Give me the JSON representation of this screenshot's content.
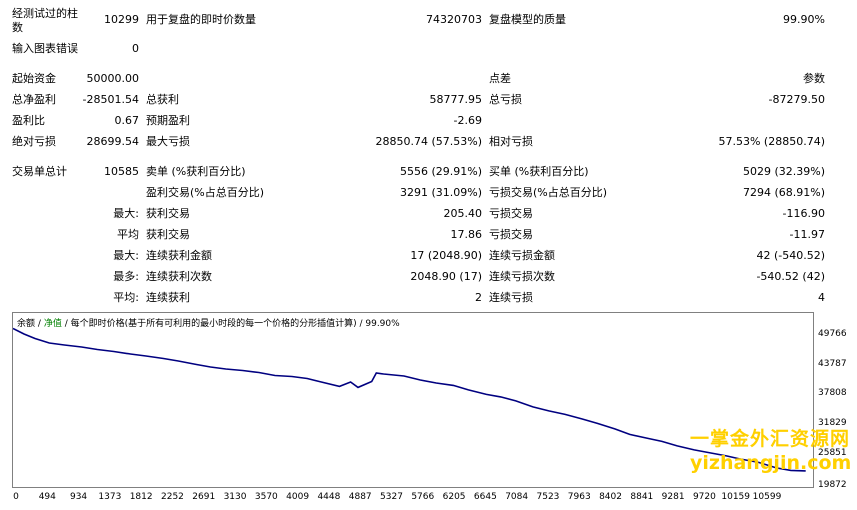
{
  "report": {
    "bars_label": "经测试过的柱数",
    "bars_value": "10299",
    "ticks_label": "用于复盘的即时价数量",
    "ticks_value": "74320703",
    "quality_label": "复盘模型的质量",
    "quality_value": "99.90%",
    "errors_label": "输入图表错误",
    "errors_value": "0",
    "deposit_label": "起始资金",
    "deposit_value": "50000.00",
    "spread_label": "点差",
    "spread_value": "参数",
    "net_profit_label": "总净盈利",
    "net_profit_value": "-28501.54",
    "gross_profit_label": "总获利",
    "gross_profit_value": "58777.95",
    "gross_loss_label": "总亏损",
    "gross_loss_value": "-87279.50",
    "profit_factor_label": "盈利比",
    "profit_factor_value": "0.67",
    "expected_payoff_label": "预期盈利",
    "expected_payoff_value": "-2.69",
    "abs_dd_label": "绝对亏损",
    "abs_dd_value": "28699.54",
    "max_dd_label": "最大亏损",
    "max_dd_value": "28850.74 (57.53%)",
    "rel_dd_label": "相对亏损",
    "rel_dd_value": "57.53% (28850.74)",
    "total_trades_label": "交易单总计",
    "total_trades_value": "10585",
    "short_label": "卖单 (%获利百分比)",
    "short_value": "5556 (29.91%)",
    "long_label": "买单 (%获利百分比)",
    "long_value": "5029 (32.39%)",
    "profit_trades_label": "盈利交易(%占总百分比)",
    "profit_trades_value": "3291 (31.09%)",
    "loss_trades_label": "亏损交易(%占总百分比)",
    "loss_trades_value": "7294 (68.91%)",
    "largest_label": "最大:",
    "largest_profit_label": "获利交易",
    "largest_profit_value": "205.40",
    "largest_loss_label": "亏损交易",
    "largest_loss_value": "-116.90",
    "average_label": "平均",
    "avg_profit_label": "获利交易",
    "avg_profit_value": "17.86",
    "avg_loss_label": "亏损交易",
    "avg_loss_value": "-11.97",
    "max2_label": "最大:",
    "max_consec_wins_label": "连续获利金额",
    "max_consec_wins_value": "17 (2048.90)",
    "max_consec_losses_label": "连续亏损金额",
    "max_consec_losses_value": "42 (-540.52)",
    "most_label": "最多:",
    "max_consec_profit_label": "连续获利次数",
    "max_consec_profit_value": "2048.90 (17)",
    "max_consec_loss_label": "连续亏损次数",
    "max_consec_loss_value": "-540.52 (42)",
    "average2_label": "平均:",
    "avg_consec_wins_label": "连续获利",
    "avg_consec_wins_value": "2",
    "avg_consec_losses_label": "连续亏损",
    "avg_consec_losses_value": "4"
  },
  "chart_header": {
    "balance": "余额",
    "sep1": "/",
    "equity": "净值",
    "rest": "/ 每个即时价格(基于所有可利用的最小时段的每一个价格的分形插值计算) / 99.90%"
  },
  "watermark": {
    "line1": "一掌金外汇资源网",
    "line2": "yizhangjin.com"
  },
  "colors": {
    "line": "#000080",
    "equity_label": "#008000",
    "watermark": "#ffd000"
  },
  "chart_data": {
    "type": "line",
    "title": "",
    "xlabel": "",
    "ylabel": "",
    "x_ticks": [
      "0",
      "494",
      "934",
      "1373",
      "1812",
      "2252",
      "2691",
      "3130",
      "3570",
      "4009",
      "4448",
      "4887",
      "5327",
      "5766",
      "6205",
      "6645",
      "7084",
      "7523",
      "7963",
      "8402",
      "8841",
      "9281",
      "9720",
      "10159",
      "10599"
    ],
    "y_ticks": [
      "49766",
      "43787",
      "37808",
      "31829",
      "25851",
      "19872"
    ],
    "ylim": [
      19872,
      51500
    ],
    "xlim": [
      0,
      10900
    ],
    "series": [
      {
        "x": [
          0,
          150,
          300,
          494,
          700,
          934,
          1150,
          1373,
          1600,
          1812,
          2050,
          2252,
          2500,
          2691,
          2900,
          3130,
          3350,
          3570,
          3800,
          4009,
          4200,
          4448,
          4600,
          4700,
          4887,
          4950,
          5050,
          5327,
          5550,
          5766,
          6000,
          6205,
          6450,
          6645,
          6850,
          7084,
          7300,
          7523,
          7750,
          7963,
          8200,
          8402,
          8650,
          8841,
          9050,
          9281,
          9500,
          9720,
          9900,
          10159,
          10400,
          10599,
          10800
        ],
        "y": [
          51200,
          50100,
          49200,
          48300,
          47900,
          47500,
          47000,
          46600,
          46100,
          45700,
          45200,
          44700,
          44000,
          43500,
          43100,
          42800,
          42400,
          41800,
          41600,
          41200,
          40500,
          39600,
          40500,
          39400,
          40600,
          42300,
          42100,
          41700,
          40900,
          40300,
          39800,
          38900,
          38000,
          37500,
          36700,
          35500,
          34700,
          34000,
          33100,
          32200,
          31100,
          30000,
          29200,
          28600,
          27700,
          26900,
          26300,
          25700,
          25100,
          24400,
          23300,
          22800,
          22700
        ]
      }
    ]
  }
}
